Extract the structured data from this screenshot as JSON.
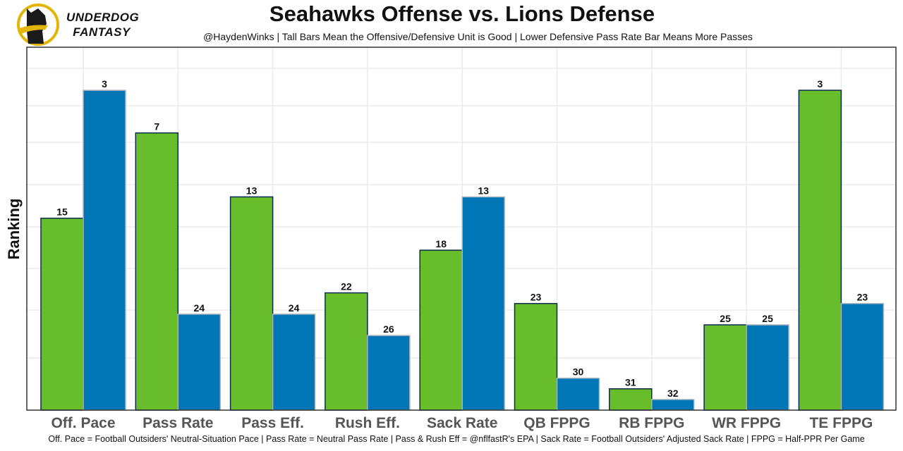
{
  "logo": {
    "line1": "UNDERDOG",
    "line2": "FANTASY"
  },
  "header": {
    "title": "Seahawks Offense vs. Lions Defense",
    "subtitle": "@HaydenWinks | Tall Bars Mean the Offensive/Defensive Unit is Good | Lower Defensive Pass Rate Bar Means More Passes"
  },
  "caption": "Off. Pace = Football Outsiders' Neutral-Situation Pace | Pass Rate = Neutral Pass Rate | Pass & Rush Eff = @nflfastR's EPA | Sack Rate = Football Outsiders' Adjusted Sack Rate | FPPG = Half-PPR Per Game",
  "chart_data": {
    "type": "bar",
    "title": "Seahawks Offense vs. Lions Defense",
    "ylabel": "Ranking",
    "xlabel": "",
    "y_axis_inverted_rank": true,
    "rank_range": [
      1,
      32
    ],
    "grid": true,
    "categories": [
      "Off. Pace",
      "Pass Rate",
      "Pass Eff.",
      "Rush Eff.",
      "Sack Rate",
      "QB FPPG",
      "RB FPPG",
      "WR FPPG",
      "TE FPPG"
    ],
    "series": [
      {
        "color": "#67bd2a",
        "values": [
          15,
          7,
          13,
          22,
          18,
          23,
          31,
          25,
          3
        ]
      },
      {
        "color": "#0076b6",
        "values": [
          3,
          24,
          24,
          26,
          13,
          30,
          32,
          25,
          23
        ]
      }
    ]
  }
}
